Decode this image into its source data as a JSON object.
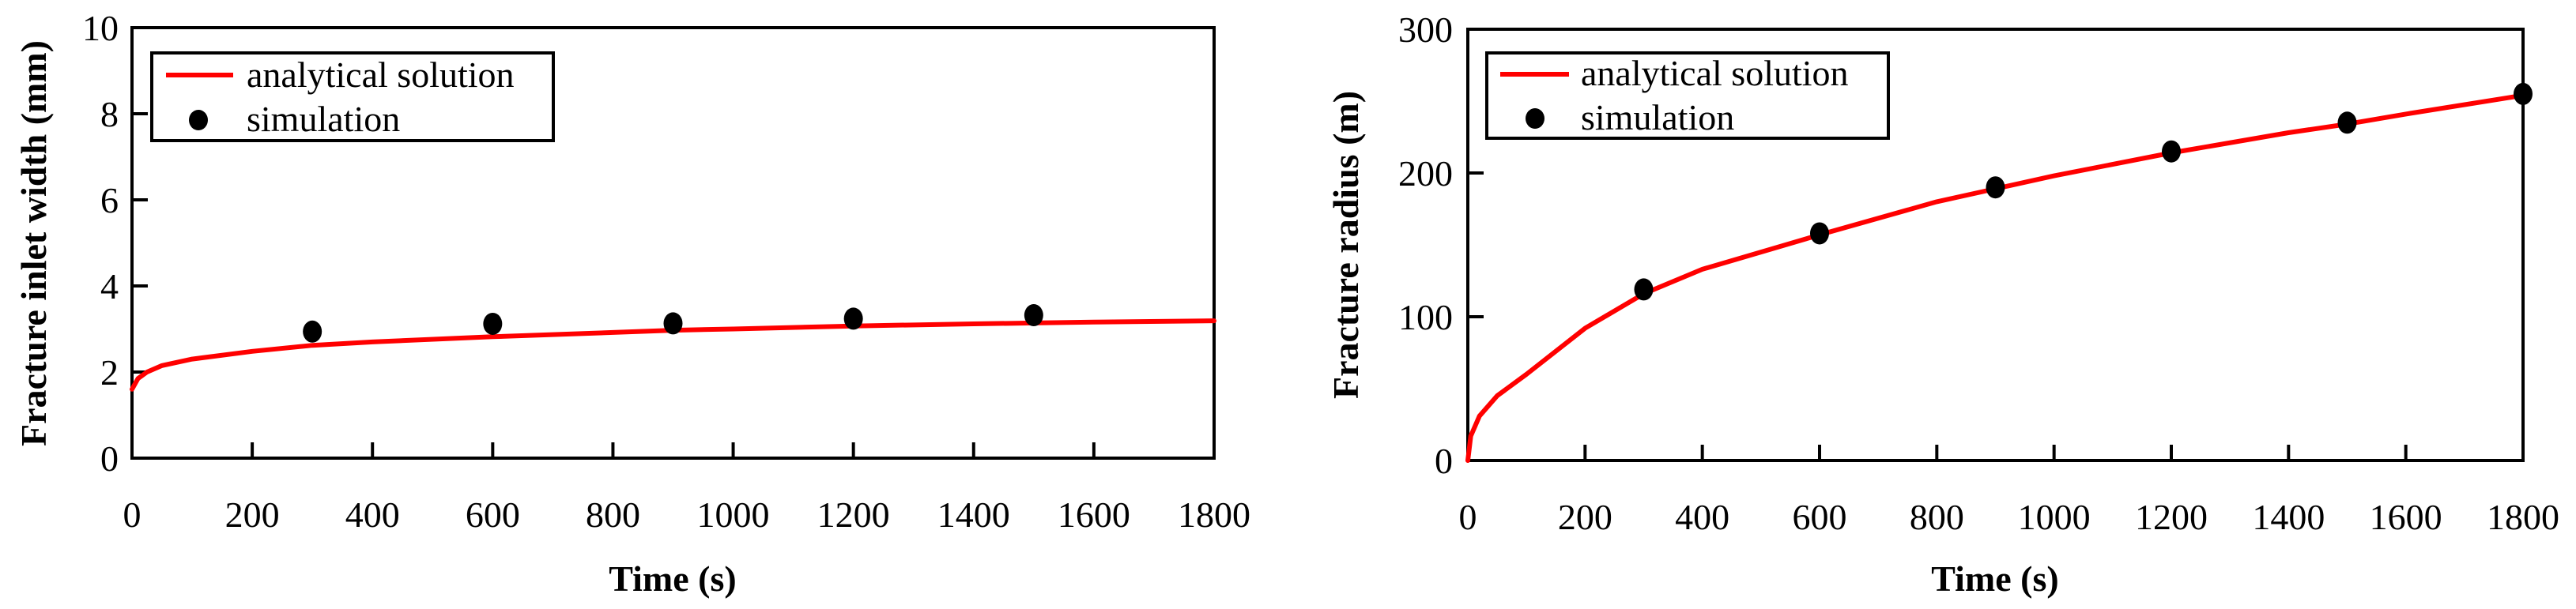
{
  "chart_data": [
    {
      "type": "line",
      "title": "",
      "xlabel": "Time (s)",
      "ylabel": "Fracture inlet width (mm)",
      "xlim": [
        0,
        1800
      ],
      "ylim": [
        0,
        10
      ],
      "xticks": [
        0,
        200,
        400,
        600,
        800,
        1000,
        1200,
        1400,
        1600,
        1800
      ],
      "yticks": [
        0,
        2,
        4,
        6,
        8,
        10
      ],
      "grid": false,
      "legend_position": "upper left",
      "series": [
        {
          "name": "analytical solution",
          "kind": "line",
          "color": "#ff0000",
          "x": [
            0,
            10,
            25,
            50,
            100,
            200,
            300,
            400,
            600,
            800,
            900,
            1000,
            1200,
            1400,
            1500,
            1600,
            1800
          ],
          "y": [
            1.6,
            1.85,
            2.0,
            2.15,
            2.3,
            2.48,
            2.62,
            2.7,
            2.82,
            2.92,
            2.97,
            3.0,
            3.07,
            3.12,
            3.14,
            3.16,
            3.19
          ]
        },
        {
          "name": "simulation",
          "kind": "scatter",
          "color": "#000000",
          "x": [
            300,
            600,
            900,
            1200,
            1500
          ],
          "y": [
            2.94,
            3.12,
            3.13,
            3.24,
            3.32
          ]
        }
      ]
    },
    {
      "type": "line",
      "title": "",
      "xlabel": "Time (s)",
      "ylabel": "Fracture radius (m)",
      "xlim": [
        0,
        1800
      ],
      "ylim": [
        0,
        300
      ],
      "xticks": [
        0,
        200,
        400,
        600,
        800,
        1000,
        1200,
        1400,
        1600,
        1800
      ],
      "yticks": [
        0,
        100,
        200,
        300
      ],
      "grid": false,
      "legend_position": "upper left",
      "series": [
        {
          "name": "analytical solution",
          "kind": "line",
          "color": "#ff0000",
          "x": [
            0,
            5,
            20,
            50,
            100,
            200,
            300,
            400,
            600,
            800,
            900,
            1000,
            1200,
            1400,
            1500,
            1600,
            1800
          ],
          "y": [
            0,
            17,
            31,
            45,
            60,
            92,
            116,
            133,
            157,
            180,
            189,
            198,
            214,
            228,
            234,
            241,
            254
          ]
        },
        {
          "name": "simulation",
          "kind": "scatter",
          "color": "#000000",
          "x": [
            300,
            600,
            900,
            1200,
            1500,
            1800
          ],
          "y": [
            119,
            158,
            190,
            215,
            235,
            255
          ]
        }
      ]
    }
  ],
  "charts": [
    {
      "xlabel": "Time (s)",
      "ylabel": "Fracture inlet width (mm)",
      "xtick_labels": [
        "0",
        "200",
        "400",
        "600",
        "800",
        "1000",
        "1200",
        "1400",
        "1600",
        "1800"
      ],
      "ytick_labels": [
        "0",
        "2",
        "4",
        "6",
        "8",
        "10"
      ],
      "legend": [
        "analytical solution",
        "simulation"
      ]
    },
    {
      "xlabel": "Time (s)",
      "ylabel": "Fracture radius (m)",
      "xtick_labels": [
        "0",
        "200",
        "400",
        "600",
        "800",
        "1000",
        "1200",
        "1400",
        "1600",
        "1800"
      ],
      "ytick_labels": [
        "0",
        "100",
        "200",
        "300"
      ],
      "legend": [
        "analytical solution",
        "simulation"
      ]
    }
  ],
  "colors": {
    "analytical": "#ff0000",
    "simulation": "#000000",
    "axes": "#000000"
  }
}
